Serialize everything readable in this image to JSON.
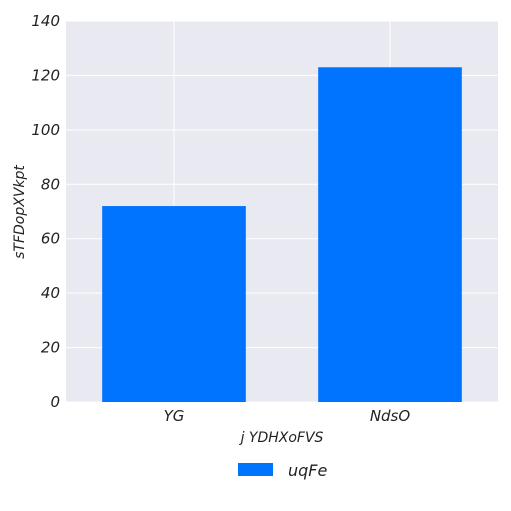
{
  "chart_data": {
    "type": "bar",
    "title": "",
    "xlabel": "j  YDHXoFVS",
    "ylabel": "sTFDopXVkpt",
    "categories": [
      "YG",
      "NdsO"
    ],
    "series": [
      {
        "name": "uqFe",
        "values": [
          72,
          123
        ],
        "color": "#0073ff"
      }
    ],
    "ylim": [
      0,
      140
    ],
    "yticks": [
      0,
      20,
      40,
      60,
      80,
      100,
      120,
      140
    ],
    "grid": true,
    "legend_position": "bottom-center",
    "background_color": "#e8e9f1",
    "grid_color": "#ffffff"
  }
}
